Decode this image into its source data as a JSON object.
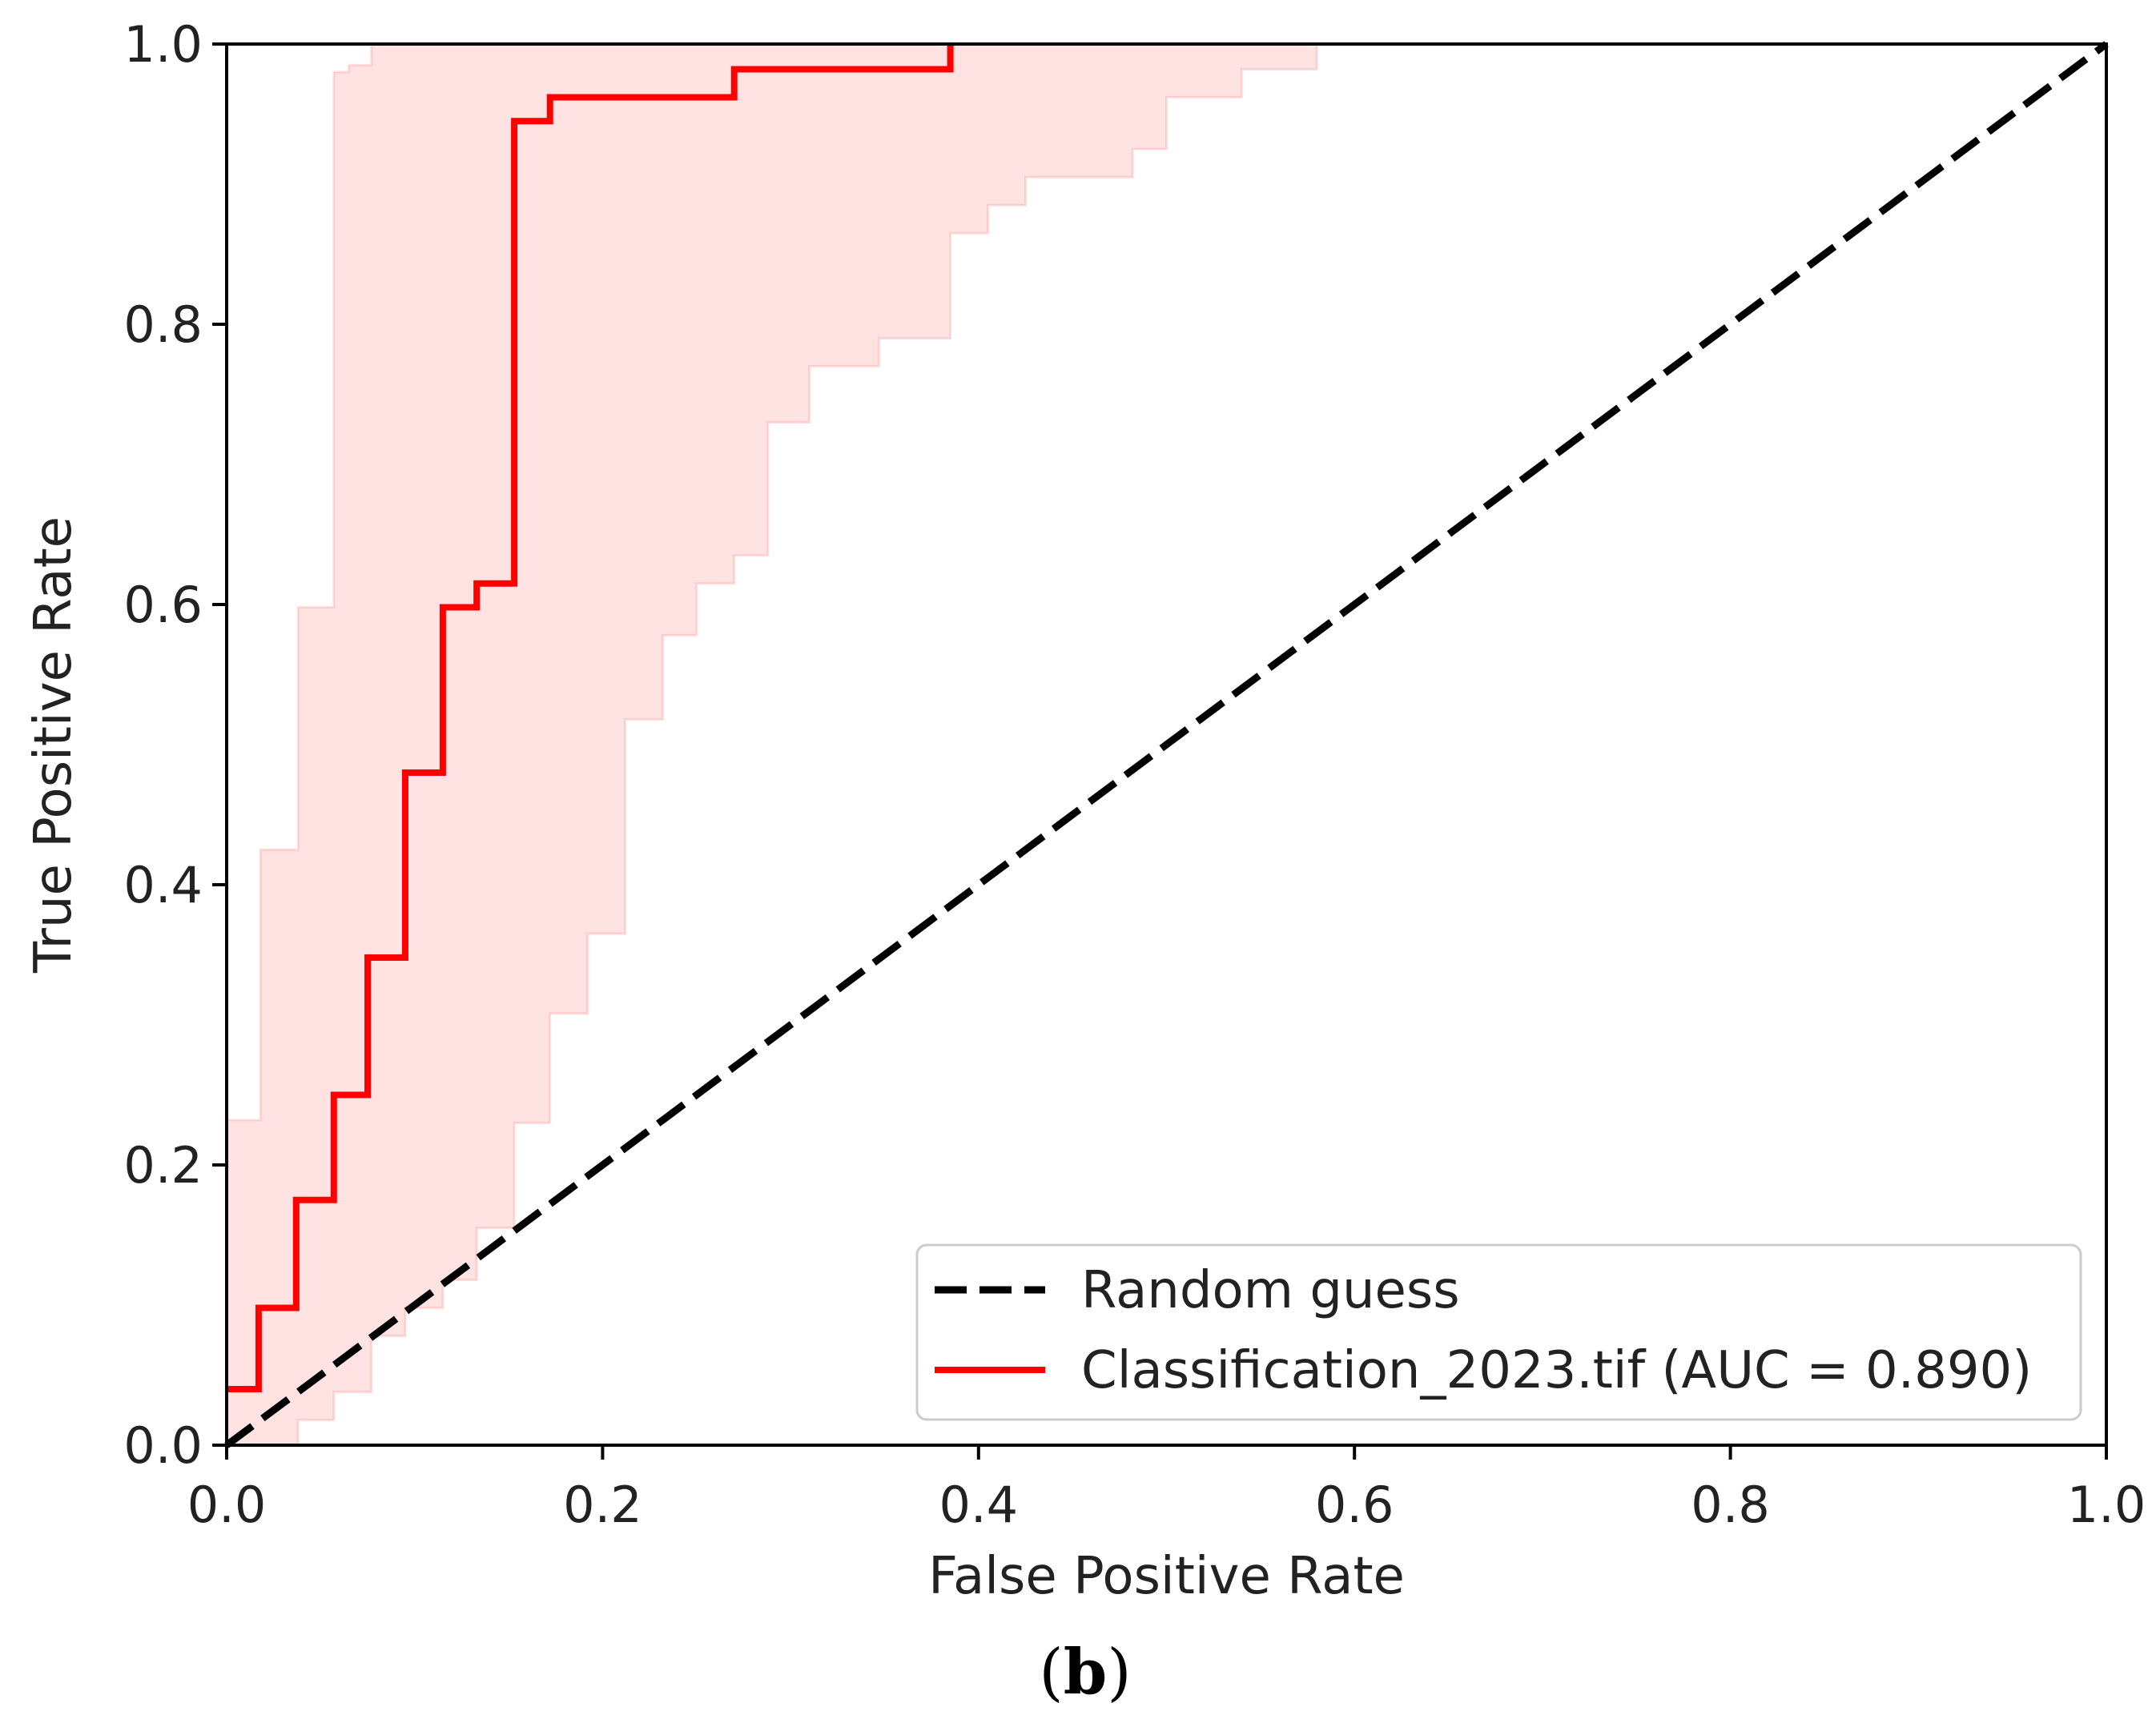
{
  "chart_data": {
    "type": "line",
    "title": "",
    "xlabel": "False Positive Rate",
    "ylabel": "True Positive Rate",
    "xlim": [
      0.0,
      1.0
    ],
    "ylim": [
      0.0,
      1.0
    ],
    "x_ticks": [
      0.0,
      0.2,
      0.4,
      0.6,
      0.8,
      1.0
    ],
    "y_ticks": [
      0.0,
      0.2,
      0.4,
      0.6,
      0.8,
      1.0
    ],
    "x_tick_labels": [
      "0.0",
      "0.2",
      "0.4",
      "0.6",
      "0.8",
      "1.0"
    ],
    "y_tick_labels": [
      "0.0",
      "0.2",
      "0.4",
      "0.6",
      "0.8",
      "1.0"
    ],
    "grid": false,
    "legend_position": "lower-right",
    "panel_label": {
      "open": "(",
      "letter": "b",
      "close": ")"
    },
    "series": [
      {
        "name": "Random guess",
        "style": "dashed",
        "color": "#000000",
        "x": [
          0.0,
          1.0
        ],
        "y": [
          0.0,
          1.0
        ]
      },
      {
        "name": "Classification_2023.tif (AUC = 0.890)",
        "style": "solid-step",
        "color": "#ff0000",
        "auc": 0.89,
        "x": [
          0.0,
          0.017,
          0.017,
          0.037,
          0.037,
          0.057,
          0.057,
          0.075,
          0.075,
          0.095,
          0.095,
          0.115,
          0.115,
          0.133,
          0.133,
          0.153,
          0.153,
          0.172,
          0.172,
          0.27,
          0.27,
          0.385,
          0.385
        ],
        "y": [
          0.04,
          0.04,
          0.098,
          0.098,
          0.175,
          0.175,
          0.25,
          0.25,
          0.348,
          0.348,
          0.48,
          0.48,
          0.598,
          0.598,
          0.615,
          0.615,
          0.945,
          0.945,
          0.962,
          0.962,
          0.982,
          0.982,
          1.0
        ]
      }
    ],
    "confidence_band": {
      "color": "#ff0000",
      "fill_opacity": 0.11,
      "upper": {
        "x": [
          0.0,
          0.0,
          0.018,
          0.018,
          0.038,
          0.038,
          0.057,
          0.057,
          0.065,
          0.065,
          0.077,
          0.077,
          1.0
        ],
        "y": [
          0.0,
          0.232,
          0.232,
          0.425,
          0.425,
          0.598,
          0.598,
          0.98,
          0.98,
          0.985,
          0.985,
          1.0,
          1.0
        ]
      },
      "lower": {
        "x": [
          0.0,
          0.038,
          0.038,
          0.057,
          0.057,
          0.077,
          0.077,
          0.095,
          0.095,
          0.115,
          0.115,
          0.133,
          0.133,
          0.153,
          0.153,
          0.172,
          0.172,
          0.192,
          0.192,
          0.212,
          0.212,
          0.232,
          0.232,
          0.25,
          0.25,
          0.27,
          0.27,
          0.288,
          0.288,
          0.31,
          0.31,
          0.347,
          0.347,
          0.385,
          0.385,
          0.405,
          0.405,
          0.425,
          0.425,
          0.482,
          0.482,
          0.5,
          0.5,
          0.54,
          0.54,
          0.58,
          0.58,
          1.0
        ],
        "y": [
          0.0,
          0.0,
          0.018,
          0.018,
          0.038,
          0.038,
          0.078,
          0.078,
          0.098,
          0.098,
          0.118,
          0.118,
          0.155,
          0.155,
          0.23,
          0.23,
          0.308,
          0.308,
          0.365,
          0.365,
          0.518,
          0.518,
          0.578,
          0.578,
          0.615,
          0.615,
          0.635,
          0.635,
          0.73,
          0.73,
          0.77,
          0.77,
          0.79,
          0.79,
          0.865,
          0.865,
          0.885,
          0.885,
          0.905,
          0.905,
          0.925,
          0.925,
          0.962,
          0.962,
          0.982,
          0.982,
          1.0,
          1.0
        ]
      }
    }
  }
}
